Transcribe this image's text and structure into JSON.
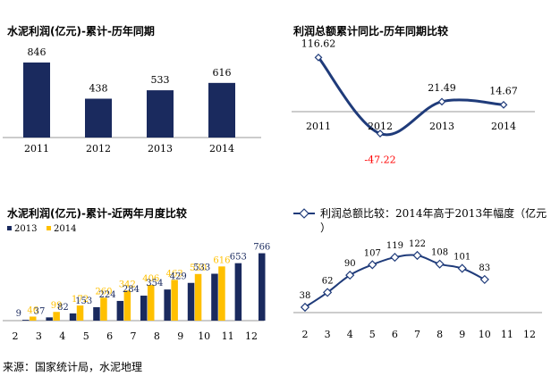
{
  "source": "来源：国家统计局，水泥地理",
  "colors": {
    "navy": "#1a2a5e",
    "gold": "#ffc000",
    "line": "#1f3b7a",
    "red": "#ff0000"
  },
  "chart_data": [
    {
      "type": "bar",
      "title": "水泥利润(亿元)-累计-历年同期",
      "categories": [
        "2011",
        "2012",
        "2013",
        "2014"
      ],
      "values": [
        846,
        438,
        533,
        616
      ],
      "ylim": [
        0,
        1000
      ]
    },
    {
      "type": "line",
      "title": "利润总额累计同比-历年同期比较",
      "categories": [
        "2011",
        "2012",
        "2013",
        "2014"
      ],
      "values": [
        116.62,
        -47.22,
        21.49,
        14.67
      ],
      "value_labels": [
        "116.62",
        "-47.22",
        "21.49",
        "14.67"
      ],
      "ylim": [
        -60,
        130
      ]
    },
    {
      "type": "bar",
      "title": "水泥利润(亿元)-累计-近两年月度比较",
      "categories": [
        "2",
        "3",
        "4",
        "5",
        "6",
        "7",
        "8",
        "9",
        "10",
        "11",
        "12"
      ],
      "series": [
        {
          "name": "2013",
          "values": [
            9,
            37,
            82,
            153,
            224,
            284,
            354,
            429,
            533,
            653,
            766
          ]
        },
        {
          "name": "2014",
          "values": [
            46,
            99,
            172,
            260,
            342,
            406,
            463,
            530,
            616,
            null,
            null
          ]
        }
      ],
      "legend": "top-left",
      "ylim": [
        0,
        800
      ]
    },
    {
      "type": "line",
      "title": "利润总额比较：2014年高于2013年幅度（亿元）",
      "series_name": "利润总额比较：2014年高于2013年幅度（亿元）",
      "categories": [
        "2",
        "3",
        "4",
        "5",
        "6",
        "7",
        "8",
        "9",
        "10",
        "11",
        "12"
      ],
      "values": [
        38,
        62,
        90,
        107,
        119,
        122,
        108,
        101,
        83,
        null,
        null
      ],
      "ylim": [
        0,
        140
      ]
    }
  ]
}
